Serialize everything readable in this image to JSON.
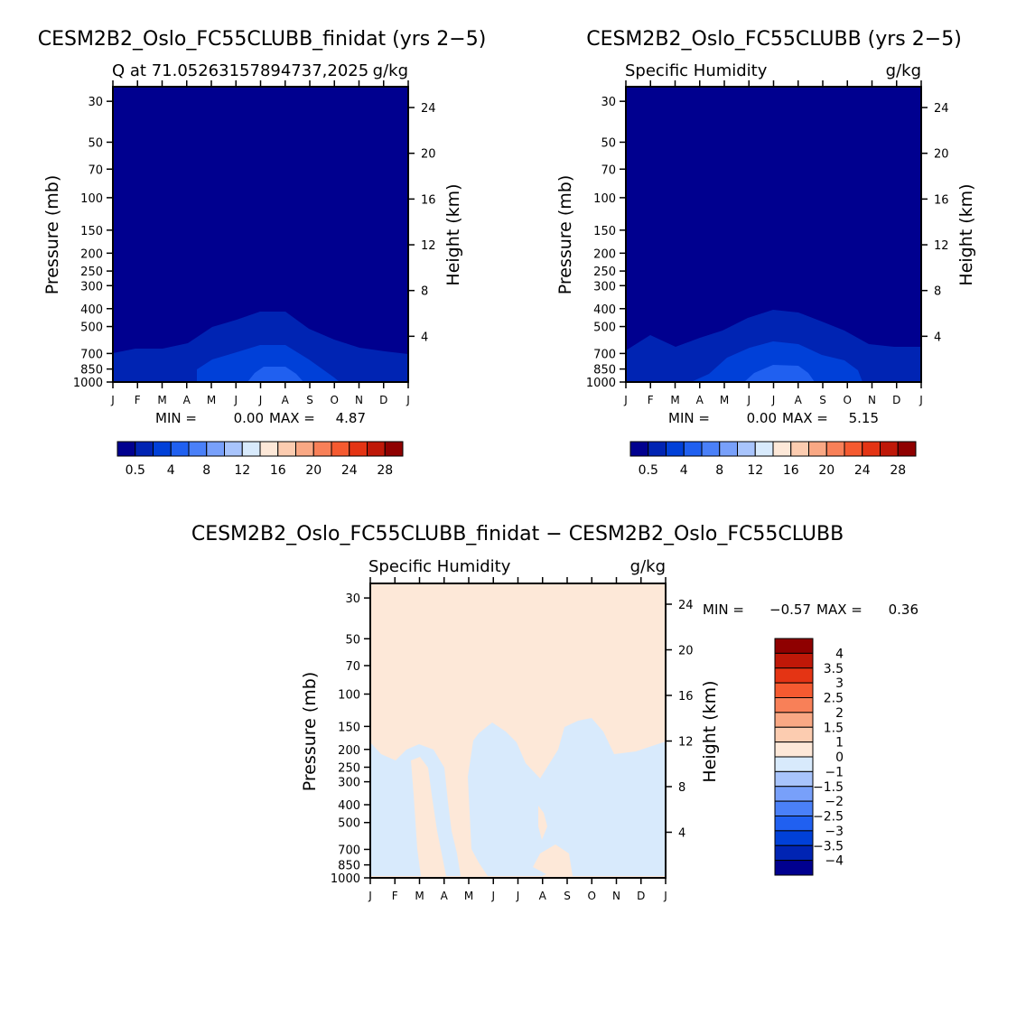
{
  "chart_data": [
    {
      "type": "heatmap",
      "title": "CESM2B2_Oslo_FC55CLUBB_finidat (yrs 2−5)",
      "subtitle_left": "Q  at 71.05263157894737,2025",
      "subtitle_right": "g/kg",
      "ylabel": "Pressure (mb)",
      "y2label": "Height (km)",
      "xticks": [
        "J",
        "F",
        "M",
        "A",
        "M",
        "J",
        "J",
        "A",
        "S",
        "O",
        "N",
        "D",
        "J"
      ],
      "yticks": [
        "30",
        "50",
        "70",
        "100",
        "150",
        "200",
        "250",
        "300",
        "400",
        "500",
        "700",
        "850",
        "1000"
      ],
      "y2ticks": [
        "24",
        "20",
        "16",
        "12",
        "8",
        "4"
      ],
      "min_label": "MIN =",
      "min_value": "0.00",
      "max_label": "MAX =",
      "max_value": "4.87",
      "contour_levels": [
        0.5,
        2,
        4
      ],
      "ylim_mb": [
        1000,
        25
      ],
      "colorbar": {
        "labels": [
          "0.5",
          "4",
          "8",
          "12",
          "16",
          "20",
          "24",
          "28"
        ],
        "colors": [
          "#00008f",
          "#0024b3",
          "#0040d8",
          "#2060f0",
          "#4a80f8",
          "#78a0fa",
          "#a8c4fc",
          "#d8eafc",
          "#fde8d8",
          "#fcccb0",
          "#f9a884",
          "#f88058",
          "#f55a30",
          "#e43414",
          "#bf1808",
          "#8f0000"
        ]
      }
    },
    {
      "type": "heatmap",
      "title": "CESM2B2_Oslo_FC55CLUBB (yrs 2−5)",
      "subtitle_left": "Specific Humidity",
      "subtitle_right": "g/kg",
      "ylabel": "Pressure (mb)",
      "y2label": "Height (km)",
      "xticks": [
        "J",
        "F",
        "M",
        "A",
        "M",
        "J",
        "J",
        "A",
        "S",
        "O",
        "N",
        "D",
        "J"
      ],
      "yticks": [
        "30",
        "50",
        "70",
        "100",
        "150",
        "200",
        "250",
        "300",
        "400",
        "500",
        "700",
        "850",
        "1000"
      ],
      "y2ticks": [
        "24",
        "20",
        "16",
        "12",
        "8",
        "4"
      ],
      "min_label": "MIN =",
      "min_value": "0.00",
      "max_label": "MAX =",
      "max_value": "5.15",
      "contour_levels": [
        0.5,
        2,
        4
      ],
      "ylim_mb": [
        1000,
        25
      ],
      "colorbar": {
        "labels": [
          "0.5",
          "4",
          "8",
          "12",
          "16",
          "20",
          "24",
          "28"
        ],
        "colors": [
          "#00008f",
          "#0024b3",
          "#0040d8",
          "#2060f0",
          "#4a80f8",
          "#78a0fa",
          "#a8c4fc",
          "#d8eafc",
          "#fde8d8",
          "#fcccb0",
          "#f9a884",
          "#f88058",
          "#f55a30",
          "#e43414",
          "#bf1808",
          "#8f0000"
        ]
      }
    },
    {
      "type": "heatmap",
      "title": "CESM2B2_Oslo_FC55CLUBB_finidat − CESM2B2_Oslo_FC55CLUBB",
      "subtitle_left": "Specific Humidity",
      "subtitle_right": "g/kg",
      "ylabel": "Pressure (mb)",
      "y2label": "Height (km)",
      "xticks": [
        "J",
        "F",
        "M",
        "A",
        "M",
        "J",
        "J",
        "A",
        "S",
        "O",
        "N",
        "D",
        "J"
      ],
      "yticks": [
        "30",
        "50",
        "70",
        "100",
        "150",
        "200",
        "250",
        "300",
        "400",
        "500",
        "700",
        "850",
        "1000"
      ],
      "y2ticks": [
        "24",
        "20",
        "16",
        "12",
        "8",
        "4"
      ],
      "min_label": "MIN =",
      "min_value": "−0.57",
      "max_label": "MAX =",
      "max_value": "0.36",
      "ylim_mb": [
        1000,
        25
      ],
      "colorbar": {
        "labels": [
          "4",
          "3.5",
          "3",
          "2.5",
          "2",
          "1.5",
          "1",
          "0",
          "−1",
          "−1.5",
          "−2",
          "−2.5",
          "−3",
          "−3.5",
          "−4"
        ],
        "colors": [
          "#8f0000",
          "#bf1808",
          "#e43414",
          "#f55a30",
          "#f88058",
          "#f9a884",
          "#fcccb0",
          "#fde8d8",
          "#d8eafc",
          "#a8c4fc",
          "#78a0fa",
          "#4a80f8",
          "#2060f0",
          "#0040d8",
          "#0024b3",
          "#00008f"
        ]
      }
    }
  ]
}
